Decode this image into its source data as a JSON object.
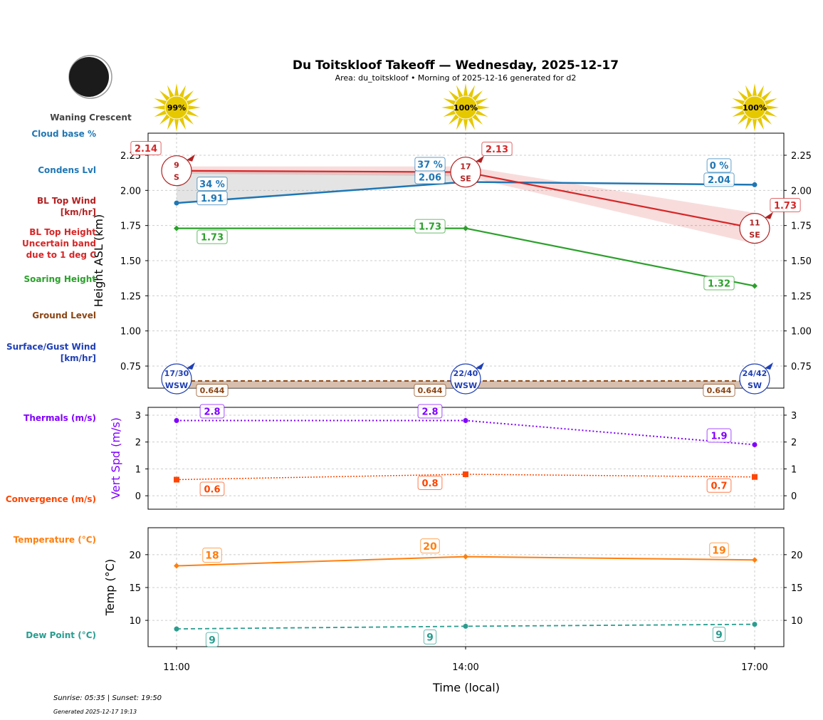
{
  "header": {
    "title": "Du Toitskloof Takeoff — Wednesday, 2025-12-17",
    "subtitle": "Area: du_toitskloof • Morning of 2025-12-16 generated for d2"
  },
  "moon": {
    "phase": "Waning Crescent",
    "icon": "moon-waning-crescent-icon"
  },
  "side_labels": {
    "cloud_base": "Cloud base %",
    "condens": "Condens Lvl",
    "bl_wind": "BL Top Wind\n[km/hr]",
    "bl_top": "BL Top Height\nUncertain band\ndue to 1 deg C",
    "soaring": "Soaring Height",
    "ground": "Ground Level",
    "surface_wind": "Surface/Gust Wind\n[km/hr]",
    "thermals": "Thermals (m/s)",
    "convergence": "Convergence (m/s)",
    "temperature": "Temperature (°C)",
    "dew": "Dew Point (°C)"
  },
  "footer": {
    "sun": "Sunrise: 05:35 | Sunset: 19:50",
    "generated": "Generated 2025-12-17 19:13"
  },
  "colors": {
    "condens": "#1f77b4",
    "bl_top": "#d62728",
    "soaring": "#2ca02c",
    "ground": "#8b4513",
    "surface_wind": "#1f3fb4",
    "thermals": "#8000ff",
    "convergence": "#ff4500",
    "temperature": "#ff7f0e",
    "dew": "#2a9d8f",
    "sun": "#e6c800"
  },
  "chart_data": [
    {
      "type": "line",
      "ylabel": "Height ASL (km)",
      "ylim": [
        0.593,
        2.407
      ],
      "yticks": [
        "0.75",
        "1.00",
        "1.25",
        "1.50",
        "1.75",
        "2.00",
        "2.25"
      ],
      "grid": true,
      "x": [
        "11:00",
        "14:00",
        "17:00"
      ],
      "sun_percent": [
        "99%",
        "100%",
        "100%"
      ],
      "series": [
        {
          "name": "Condens Lvl",
          "values": [
            1.91,
            2.06,
            2.04
          ],
          "labels": [
            "1.91",
            "2.06",
            "2.04"
          ],
          "cloud_base_labels": [
            "34 %",
            "37 %",
            "0 %"
          ]
        },
        {
          "name": "BL Top Height",
          "values": [
            2.14,
            2.13,
            1.73
          ],
          "labels": [
            "2.14",
            "2.13",
            "1.73"
          ],
          "band_low": [
            2.12,
            2.1,
            1.62
          ],
          "band_high": [
            2.17,
            2.17,
            1.84
          ]
        },
        {
          "name": "Soaring Height",
          "values": [
            1.73,
            1.73,
            1.32
          ],
          "labels": [
            "1.73",
            "1.73",
            "1.32"
          ]
        },
        {
          "name": "Ground Level",
          "values": [
            0.644,
            0.644,
            0.644
          ],
          "labels": [
            "0.644",
            "0.644",
            "0.644"
          ]
        }
      ],
      "bl_wind": [
        {
          "speed": "9",
          "dir": "S"
        },
        {
          "speed": "17",
          "dir": "SE"
        },
        {
          "speed": "11",
          "dir": "SE"
        }
      ],
      "surface_wind": [
        {
          "speed": "17/30",
          "dir": "WSW"
        },
        {
          "speed": "22/40",
          "dir": "WSW"
        },
        {
          "speed": "24/42",
          "dir": "SW"
        }
      ]
    },
    {
      "type": "line",
      "ylabel": "Vert Spd (m/s)",
      "ylim": [
        -0.5,
        3.29
      ],
      "yticks": [
        "0",
        "1",
        "2",
        "3"
      ],
      "grid": true,
      "x": [
        "11:00",
        "14:00",
        "17:00"
      ],
      "series": [
        {
          "name": "Thermals (m/s)",
          "values": [
            2.8,
            2.8,
            1.9
          ],
          "labels": [
            "2.8",
            "2.8",
            "1.9"
          ]
        },
        {
          "name": "Convergence (m/s)",
          "values": [
            0.6,
            0.8,
            0.7
          ],
          "labels": [
            "0.6",
            "0.8",
            "0.7"
          ]
        }
      ]
    },
    {
      "type": "line",
      "ylabel": "Temp (°C)",
      "xlabel": "Time (local)",
      "ylim": [
        6.0,
        24.1
      ],
      "yticks": [
        "10",
        "15",
        "20"
      ],
      "grid": true,
      "x": [
        "11:00",
        "14:00",
        "17:00"
      ],
      "series": [
        {
          "name": "Temperature (°C)",
          "values": [
            18.3,
            19.7,
            19.2
          ],
          "labels": [
            "18",
            "20",
            "19"
          ]
        },
        {
          "name": "Dew Point (°C)",
          "values": [
            8.7,
            9.1,
            9.4
          ],
          "labels": [
            "9",
            "9",
            "9"
          ]
        }
      ]
    }
  ]
}
